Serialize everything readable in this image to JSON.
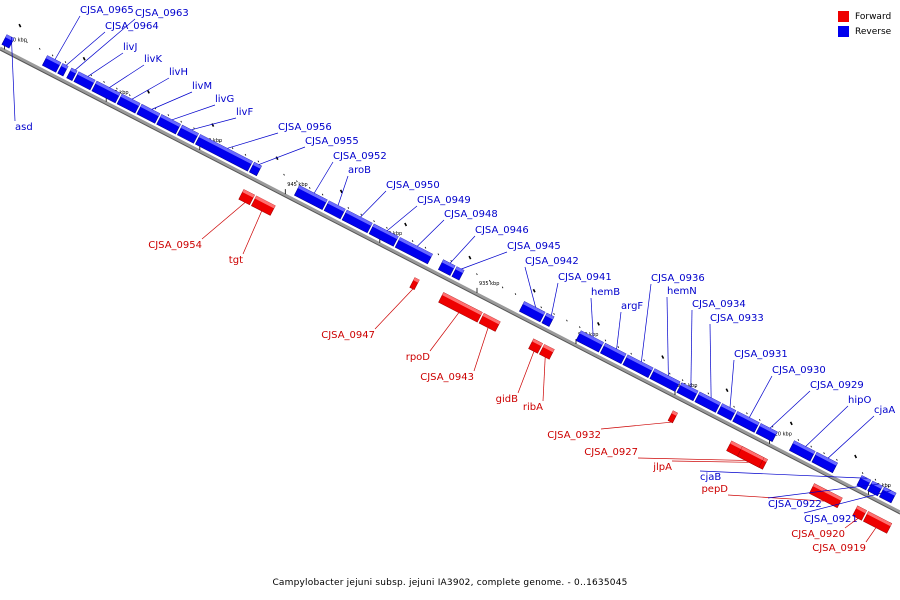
{
  "caption": "Campylobacter jejuni subsp. jejuni IA3902, complete genome. - 0..1635045",
  "legend": [
    {
      "label": "Forward",
      "color": "#ee0000"
    },
    {
      "label": "Reverse",
      "color": "#0000ee"
    }
  ],
  "colors": {
    "forward": "#ee0000",
    "reverse": "#0000ee",
    "axis": "#777777",
    "label_forward": "#cc0000",
    "label_reverse": "#0000cc"
  },
  "kbp_marks": [
    "960 kbp",
    "955 kbp",
    "950 kbp",
    "945 kbp",
    "940 kbp",
    "935 kbp",
    "930 kbp",
    "925 kbp",
    "920 kbp",
    "915 kbp"
  ],
  "genes": [
    {
      "label": "asd",
      "strand": "reverse"
    },
    {
      "label": "CJSA_0965",
      "strand": "reverse"
    },
    {
      "label": "CJSA_0963",
      "strand": "reverse"
    },
    {
      "label": "CJSA_0964",
      "strand": "reverse"
    },
    {
      "label": "livJ",
      "strand": "reverse"
    },
    {
      "label": "livK",
      "strand": "reverse"
    },
    {
      "label": "livH",
      "strand": "reverse"
    },
    {
      "label": "livM",
      "strand": "reverse"
    },
    {
      "label": "livG",
      "strand": "reverse"
    },
    {
      "label": "livF",
      "strand": "reverse"
    },
    {
      "label": "CJSA_0956",
      "strand": "reverse"
    },
    {
      "label": "CJSA_0955",
      "strand": "reverse"
    },
    {
      "label": "CJSA_0954",
      "strand": "forward"
    },
    {
      "label": "tgt",
      "strand": "forward"
    },
    {
      "label": "CJSA_0952",
      "strand": "reverse"
    },
    {
      "label": "aroB",
      "strand": "reverse"
    },
    {
      "label": "CJSA_0950",
      "strand": "reverse"
    },
    {
      "label": "CJSA_0949",
      "strand": "reverse"
    },
    {
      "label": "CJSA_0948",
      "strand": "reverse"
    },
    {
      "label": "CJSA_0947",
      "strand": "forward"
    },
    {
      "label": "CJSA_0946",
      "strand": "reverse"
    },
    {
      "label": "CJSA_0945",
      "strand": "reverse"
    },
    {
      "label": "rpoD",
      "strand": "forward"
    },
    {
      "label": "CJSA_0943",
      "strand": "forward"
    },
    {
      "label": "CJSA_0942",
      "strand": "reverse"
    },
    {
      "label": "CJSA_0941",
      "strand": "reverse"
    },
    {
      "label": "gidB",
      "strand": "forward"
    },
    {
      "label": "ribA",
      "strand": "forward"
    },
    {
      "label": "hemB",
      "strand": "reverse"
    },
    {
      "label": "argF",
      "strand": "reverse"
    },
    {
      "label": "CJSA_0936",
      "strand": "reverse"
    },
    {
      "label": "hemN",
      "strand": "reverse"
    },
    {
      "label": "CJSA_0934",
      "strand": "reverse"
    },
    {
      "label": "CJSA_0933",
      "strand": "reverse"
    },
    {
      "label": "CJSA_0932",
      "strand": "forward"
    },
    {
      "label": "CJSA_0931",
      "strand": "reverse"
    },
    {
      "label": "CJSA_0930",
      "strand": "reverse"
    },
    {
      "label": "CJSA_0929",
      "strand": "reverse"
    },
    {
      "label": "CJSA_0927",
      "strand": "forward"
    },
    {
      "label": "hipO",
      "strand": "reverse"
    },
    {
      "label": "cjaA",
      "strand": "reverse"
    },
    {
      "label": "jlpA",
      "strand": "forward"
    },
    {
      "label": "cjaB",
      "strand": "reverse"
    },
    {
      "label": "pepD",
      "strand": "forward"
    },
    {
      "label": "CJSA_0922",
      "strand": "reverse"
    },
    {
      "label": "CJSA_0921",
      "strand": "reverse"
    },
    {
      "label": "CJSA_0920",
      "strand": "forward"
    },
    {
      "label": "CJSA_0919",
      "strand": "forward"
    }
  ]
}
